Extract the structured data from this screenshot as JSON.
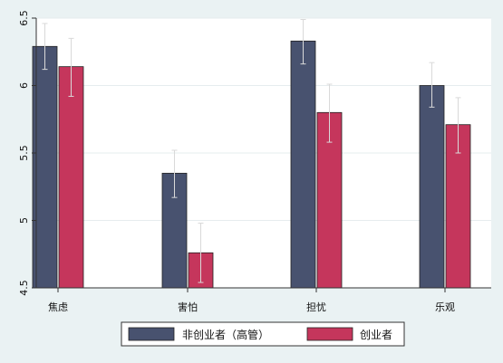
{
  "chart_data": {
    "type": "bar",
    "title": "",
    "xlabel": "",
    "ylabel": "",
    "categories": [
      "焦虑",
      "害怕",
      "担忧",
      "乐观"
    ],
    "ylim": [
      4.5,
      6.5
    ],
    "yticks": [
      4.5,
      5,
      5.5,
      6,
      6.5
    ],
    "ytick_labels": [
      "4.5",
      "5",
      "5.5",
      "6",
      "6.5"
    ],
    "grid": true,
    "legend_position": "bottom",
    "series": [
      {
        "name": "非创业者（高管）",
        "color": "#48526f",
        "values": [
          6.29,
          5.35,
          6.33,
          6.0
        ],
        "error_low": [
          6.12,
          5.17,
          6.16,
          5.84
        ],
        "error_high": [
          6.46,
          5.52,
          6.49,
          6.17
        ]
      },
      {
        "name": "创业者",
        "color": "#c5365c",
        "values": [
          6.14,
          4.76,
          5.8,
          5.71
        ],
        "error_low": [
          5.92,
          4.54,
          5.58,
          5.5
        ],
        "error_high": [
          6.35,
          4.98,
          6.01,
          5.91
        ]
      }
    ]
  }
}
